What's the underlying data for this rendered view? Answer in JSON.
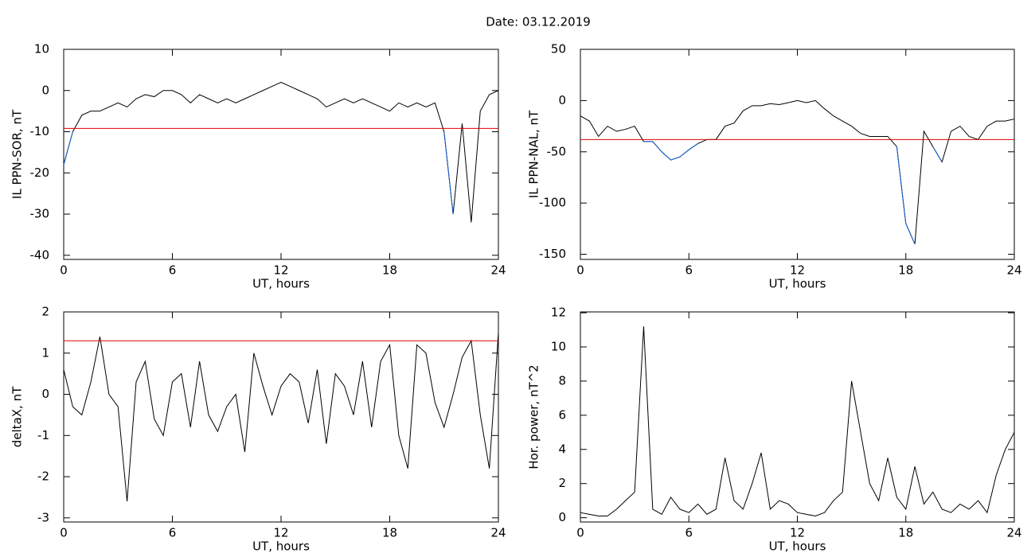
{
  "title": "Date:  03.12.2019",
  "chart_data": [
    {
      "type": "line",
      "xlabel": "UT, hours",
      "ylabel": "IL PPN-SOR, nT",
      "x": [
        0,
        0.5,
        1,
        1.5,
        2,
        2.5,
        3,
        3.5,
        4,
        4.5,
        5,
        5.5,
        6,
        6.5,
        7,
        7.5,
        8,
        8.5,
        9,
        9.5,
        10,
        10.5,
        11,
        11.5,
        12,
        12.5,
        13,
        13.5,
        14,
        14.5,
        15,
        15.5,
        16,
        16.5,
        17,
        17.5,
        18,
        18.5,
        19,
        19.5,
        20,
        20.5,
        21,
        21.5,
        22,
        22.5,
        23,
        23.5,
        24
      ],
      "values": [
        -18,
        -10,
        -6,
        -5,
        -5,
        -4,
        -3,
        -4,
        -2,
        -1,
        -1.5,
        0,
        0,
        -1,
        -3,
        -1,
        -2,
        -3,
        -2,
        -3,
        -2,
        -1,
        0,
        1,
        2,
        1,
        0,
        -1,
        -2,
        -4,
        -3,
        -2,
        -3,
        -2,
        -3,
        -4,
        -5,
        -3,
        -4,
        -3,
        -4,
        -3,
        -10,
        -30,
        -8,
        -32,
        -5,
        -1,
        0
      ],
      "color": "#000000",
      "threshold": -9.2,
      "threshold_color": "#e00000",
      "below_color": "#1060d0",
      "xlim": [
        0,
        24
      ],
      "xticks": [
        0,
        6,
        12,
        18,
        24
      ],
      "ylim": [
        -41,
        10
      ],
      "yticks": [
        -40,
        -30,
        -20,
        -10,
        0,
        10
      ]
    },
    {
      "type": "line",
      "xlabel": "UT, hours",
      "ylabel": "IL PPN-NAL, nT",
      "x": [
        0,
        0.5,
        1,
        1.5,
        2,
        2.5,
        3,
        3.5,
        4,
        4.5,
        5,
        5.5,
        6,
        6.5,
        7,
        7.5,
        8,
        8.5,
        9,
        9.5,
        10,
        10.5,
        11,
        11.5,
        12,
        12.5,
        13,
        13.5,
        14,
        14.5,
        15,
        15.5,
        16,
        16.5,
        17,
        17.5,
        18,
        18.5,
        19,
        19.5,
        20,
        20.5,
        21,
        21.5,
        22,
        22.5,
        23,
        23.5,
        24
      ],
      "values": [
        -15,
        -20,
        -35,
        -25,
        -30,
        -28,
        -25,
        -40,
        -40,
        -50,
        -58,
        -55,
        -48,
        -42,
        -38,
        -38,
        -25,
        -22,
        -10,
        -5,
        -5,
        -3,
        -4,
        -2,
        0,
        -2,
        0,
        -8,
        -15,
        -20,
        -25,
        -32,
        -35,
        -35,
        -35,
        -45,
        -120,
        -140,
        -30,
        -45,
        -60,
        -30,
        -25,
        -35,
        -38,
        -25,
        -20,
        -20,
        -18
      ],
      "color": "#000000",
      "threshold": -38,
      "threshold_color": "#e00000",
      "below_color": "#1060d0",
      "xlim": [
        0,
        24
      ],
      "xticks": [
        0,
        6,
        12,
        18,
        24
      ],
      "ylim": [
        -155,
        50
      ],
      "yticks": [
        -150,
        -100,
        -50,
        0,
        50
      ]
    },
    {
      "type": "line",
      "xlabel": "UT, hours",
      "ylabel": "deltaX, nT",
      "x": [
        0,
        0.5,
        1,
        1.5,
        2,
        2.5,
        3,
        3.5,
        4,
        4.5,
        5,
        5.5,
        6,
        6.5,
        7,
        7.5,
        8,
        8.5,
        9,
        9.5,
        10,
        10.5,
        11,
        11.5,
        12,
        12.5,
        13,
        13.5,
        14,
        14.5,
        15,
        15.5,
        16,
        16.5,
        17,
        17.5,
        18,
        18.5,
        19,
        19.5,
        20,
        20.5,
        21,
        21.5,
        22,
        22.5,
        23,
        23.5,
        24
      ],
      "values": [
        0.6,
        -0.3,
        -0.5,
        0.3,
        1.4,
        0,
        -0.3,
        -2.6,
        0.3,
        0.8,
        -0.6,
        -1,
        0.3,
        0.5,
        -0.8,
        0.8,
        -0.5,
        -0.9,
        -0.3,
        0,
        -1.4,
        1.0,
        0.2,
        -0.5,
        0.2,
        0.5,
        0.3,
        -0.7,
        0.6,
        -1.2,
        0.5,
        0.2,
        -0.5,
        0.8,
        -0.8,
        0.8,
        1.2,
        -1.0,
        -1.8,
        1.2,
        1.0,
        -0.2,
        -0.8,
        0,
        0.9,
        1.3,
        -0.5,
        -1.8,
        1.5
      ],
      "color": "#000000",
      "threshold": 1.3,
      "threshold_color": "#e00000",
      "xlim": [
        0,
        24
      ],
      "xticks": [
        0,
        6,
        12,
        18,
        24
      ],
      "ylim": [
        -3.1,
        2
      ],
      "yticks": [
        -3,
        -2,
        -1,
        0,
        1,
        2
      ]
    },
    {
      "type": "line",
      "xlabel": "UT, hours",
      "ylabel": "Hor. power, nT^2",
      "x": [
        0,
        0.5,
        1,
        1.5,
        2,
        2.5,
        3,
        3.5,
        4,
        4.5,
        5,
        5.5,
        6,
        6.5,
        7,
        7.5,
        8,
        8.5,
        9,
        9.5,
        10,
        10.5,
        11,
        11.5,
        12,
        12.5,
        13,
        13.5,
        14,
        14.5,
        15,
        15.5,
        16,
        16.5,
        17,
        17.5,
        18,
        18.5,
        19,
        19.5,
        20,
        20.5,
        21,
        21.5,
        22,
        22.5,
        23,
        23.5,
        24
      ],
      "values": [
        0.3,
        0.2,
        0.1,
        0.1,
        0.5,
        1,
        1.5,
        11.2,
        0.5,
        0.2,
        1.2,
        0.5,
        0.3,
        0.8,
        0.2,
        0.5,
        3.5,
        1.0,
        0.5,
        2,
        3.8,
        0.5,
        1,
        0.8,
        0.3,
        0.2,
        0.1,
        0.3,
        1.0,
        1.5,
        8.0,
        5.0,
        2.0,
        1.0,
        3.5,
        1.2,
        0.5,
        3.0,
        0.8,
        1.5,
        0.5,
        0.3,
        0.8,
        0.5,
        1.0,
        0.3,
        2.5,
        4.0,
        5.0
      ],
      "color": "#000000",
      "xlim": [
        0,
        24
      ],
      "xticks": [
        0,
        6,
        12,
        18,
        24
      ],
      "ylim": [
        -0.25,
        12.05
      ],
      "yticks": [
        0,
        2,
        4,
        6,
        8,
        10,
        12
      ]
    }
  ]
}
